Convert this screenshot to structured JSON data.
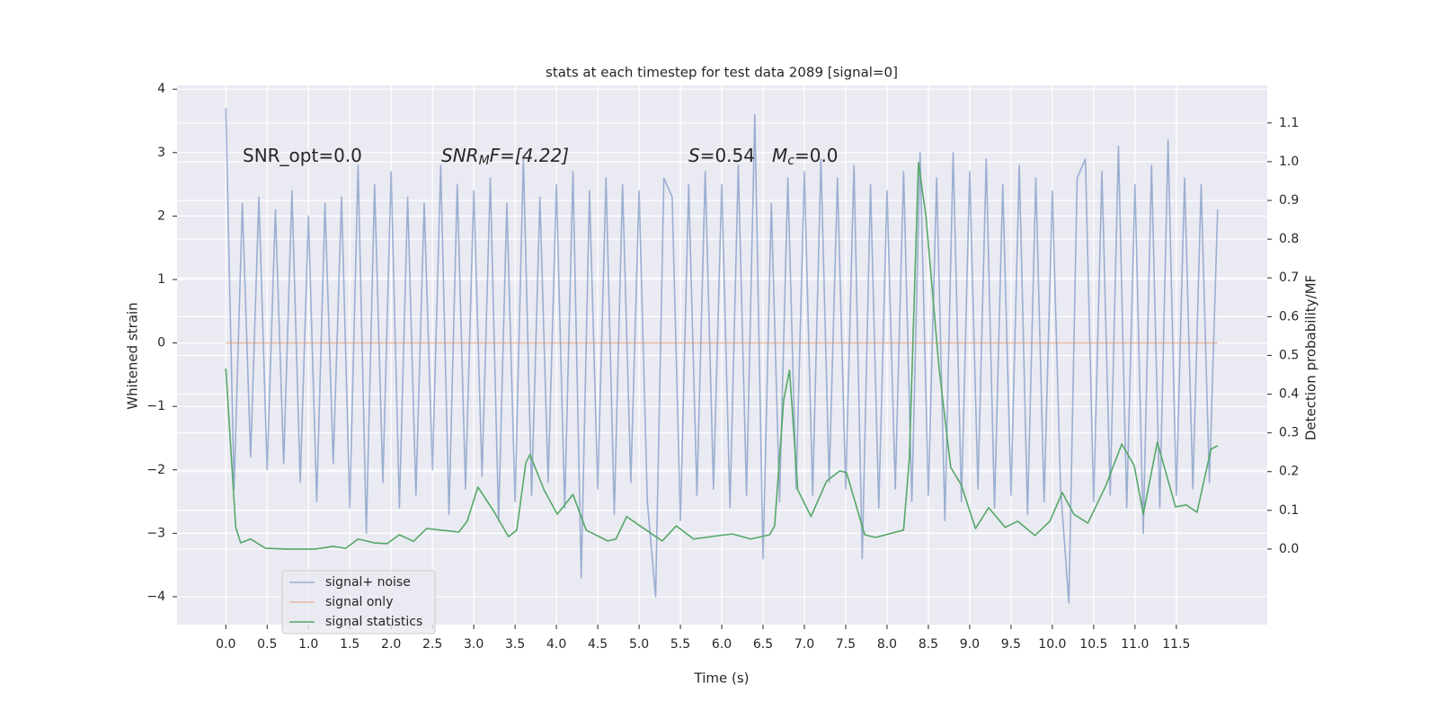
{
  "chart_data": {
    "type": "line",
    "title": "stats at each timestep for test data 2089 [signal=0]",
    "xlabel": "Time (s)",
    "ylabel": "Whitened strain",
    "y2label": "Detection probability/MF",
    "annotations": [
      [
        "SNR_opt=0.0"
      ],
      [
        "SNR",
        "M",
        "F=[4.22]"
      ],
      [
        "S",
        "=0.54"
      ],
      [
        "M",
        "c",
        "=0.0"
      ]
    ],
    "xlim": [
      -0.59,
      12.6
    ],
    "ylim": [
      -4.44,
      4.06
    ],
    "y2lim": [
      -0.195,
      1.197
    ],
    "xticks": [
      {
        "value": 0,
        "label": "0.0"
      },
      0.5,
      {
        "value": 1,
        "label": "1.0"
      },
      1.5,
      {
        "value": 2,
        "label": "2.0"
      },
      2.5,
      {
        "value": 3,
        "label": "3.0"
      },
      3.5,
      {
        "value": 4,
        "label": "4.0"
      },
      4.5,
      {
        "value": 5,
        "label": "5.0"
      },
      5.5,
      {
        "value": 6,
        "label": "6.0"
      },
      6.5,
      {
        "value": 7,
        "label": "7.0"
      },
      7.5,
      {
        "value": 8,
        "label": "8.0"
      },
      8.5,
      {
        "value": 9,
        "label": "9.0"
      },
      9.5,
      {
        "value": 10,
        "label": "10.0"
      },
      10.5,
      {
        "value": 11,
        "label": "11.0"
      },
      11.5
    ],
    "yticks": [
      {
        "value": -4,
        "label": "−4"
      },
      {
        "value": -3,
        "label": "−3"
      },
      {
        "value": -2,
        "label": "−2"
      },
      {
        "value": -1,
        "label": "−1"
      },
      0,
      1,
      2,
      3,
      4
    ],
    "y2ticks": [
      {
        "value": 0,
        "label": "0.0"
      },
      0.1,
      0.2,
      0.3,
      0.4,
      0.5,
      0.6,
      0.7,
      0.8,
      0.9,
      {
        "value": 1,
        "label": "1.0"
      },
      1.1
    ],
    "grid": true,
    "legend": "lower left",
    "series": [
      {
        "name": "signal+ noise",
        "color": "#4c72b0",
        "opacity": 0.5,
        "x": [
          0,
          0.1,
          0.2,
          0.3,
          0.4,
          0.5,
          0.6,
          0.7,
          0.8,
          0.9,
          1,
          1.1,
          1.2,
          1.3,
          1.4,
          1.5,
          1.6,
          1.7,
          1.8,
          1.9,
          2,
          2.1,
          2.2,
          2.3,
          2.4,
          2.5,
          2.6,
          2.7,
          2.8,
          2.9,
          3,
          3.1,
          3.2,
          3.3,
          3.4,
          3.5,
          3.6,
          3.7,
          3.8,
          3.9,
          4,
          4.1,
          4.2,
          4.3,
          4.4,
          4.5,
          4.6,
          4.7,
          4.8,
          4.9,
          5,
          5.1,
          5.2,
          5.3,
          5.4,
          5.5,
          5.6,
          5.7,
          5.8,
          5.9,
          6,
          6.1,
          6.2,
          6.3,
          6.4,
          6.5,
          6.6,
          6.7,
          6.8,
          6.9,
          7,
          7.1,
          7.2,
          7.3,
          7.4,
          7.5,
          7.6,
          7.7,
          7.8,
          7.9,
          8,
          8.1,
          8.2,
          8.3,
          8.4,
          8.5,
          8.6,
          8.7,
          8.8,
          8.9,
          9,
          9.1,
          9.2,
          9.3,
          9.4,
          9.5,
          9.6,
          9.7,
          9.8,
          9.9,
          10,
          10.1,
          10.2,
          10.3,
          10.4,
          10.5,
          10.6,
          10.7,
          10.8,
          10.9,
          11,
          11.1,
          11.2,
          11.3,
          11.4,
          11.5,
          11.6,
          11.7,
          11.8,
          11.9,
          12
        ],
        "values": [
          3.7,
          -2.3,
          2.2,
          -1.8,
          2.3,
          -2.0,
          2.1,
          -1.9,
          2.4,
          -2.2,
          2.0,
          -2.5,
          2.2,
          -1.9,
          2.3,
          -2.6,
          2.8,
          -3.0,
          2.5,
          -2.2,
          2.7,
          -2.6,
          2.3,
          -2.4,
          2.2,
          -2.0,
          2.8,
          -2.7,
          2.5,
          -2.3,
          2.4,
          -2.1,
          2.6,
          -2.8,
          2.2,
          -2.5,
          2.9,
          -2.4,
          2.3,
          -2.2,
          2.5,
          -2.6,
          2.7,
          -3.7,
          2.4,
          -2.3,
          2.6,
          -2.7,
          2.5,
          -2.2,
          2.4,
          -2.5,
          -4.0,
          2.6,
          2.3,
          -2.8,
          2.5,
          -2.4,
          2.7,
          -2.3,
          2.5,
          -2.6,
          2.8,
          -2.4,
          3.6,
          -3.4,
          2.2,
          -2.5,
          2.6,
          -2.3,
          2.7,
          -2.4,
          2.9,
          -2.2,
          2.6,
          -2.3,
          2.8,
          -3.4,
          2.5,
          -2.6,
          2.4,
          -2.3,
          2.7,
          -2.5,
          3.0,
          -2.4,
          2.6,
          -2.8,
          3.0,
          -2.5,
          2.7,
          -2.3,
          2.9,
          -2.6,
          2.5,
          -2.4,
          2.8,
          -2.7,
          2.6,
          -2.5,
          2.4,
          -2.3,
          -4.1,
          2.6,
          2.9,
          -2.5,
          2.7,
          -2.4,
          3.1,
          -2.6,
          2.5,
          -3.0,
          2.8,
          -2.6,
          3.2,
          -2.4,
          2.6,
          -2.3,
          2.5,
          -2.2,
          2.1
        ]
      },
      {
        "name": "signal only",
        "color": "#dd8452",
        "opacity": 0.5,
        "x": [
          0,
          12
        ],
        "values": [
          0,
          0
        ]
      },
      {
        "name": "signal statistics",
        "color": "#55a868",
        "opacity": 1,
        "axis": "y2",
        "x": [
          0,
          0.12,
          0.18,
          0.3,
          0.48,
          0.75,
          1.08,
          1.3,
          1.45,
          1.6,
          1.8,
          1.95,
          2.1,
          2.27,
          2.43,
          2.6,
          2.82,
          2.92,
          3.05,
          3.25,
          3.42,
          3.52,
          3.63,
          3.68,
          3.85,
          4.01,
          4.2,
          4.36,
          4.62,
          4.72,
          4.85,
          5.01,
          5.28,
          5.45,
          5.66,
          5.97,
          6.13,
          6.35,
          6.58,
          6.64,
          6.75,
          6.82,
          6.92,
          7.08,
          7.27,
          7.43,
          7.51,
          7.73,
          7.86,
          8.02,
          8.2,
          8.27,
          8.38,
          8.47,
          8.63,
          8.77,
          8.9,
          9.07,
          9.23,
          9.43,
          9.58,
          9.79,
          9.97,
          10.12,
          10.26,
          10.43,
          10.65,
          10.84,
          10.99,
          11.1,
          11.27,
          11.49,
          11.62,
          11.75,
          11.92,
          12.0
        ],
        "values": [
          0.466,
          0.056,
          0.016,
          0.026,
          0.002,
          0.0,
          0.0,
          0.007,
          0.002,
          0.026,
          0.016,
          0.014,
          0.037,
          0.02,
          0.053,
          0.049,
          0.044,
          0.072,
          0.16,
          0.095,
          0.032,
          0.049,
          0.223,
          0.244,
          0.153,
          0.09,
          0.141,
          0.049,
          0.021,
          0.026,
          0.084,
          0.06,
          0.021,
          0.06,
          0.026,
          0.035,
          0.039,
          0.026,
          0.037,
          0.06,
          0.385,
          0.462,
          0.153,
          0.084,
          0.176,
          0.202,
          0.197,
          0.037,
          0.03,
          0.039,
          0.049,
          0.234,
          0.998,
          0.861,
          0.466,
          0.211,
          0.165,
          0.053,
          0.107,
          0.056,
          0.072,
          0.035,
          0.072,
          0.146,
          0.09,
          0.067,
          0.165,
          0.271,
          0.216,
          0.09,
          0.276,
          0.109,
          0.114,
          0.095,
          0.258,
          0.267
        ]
      }
    ]
  }
}
